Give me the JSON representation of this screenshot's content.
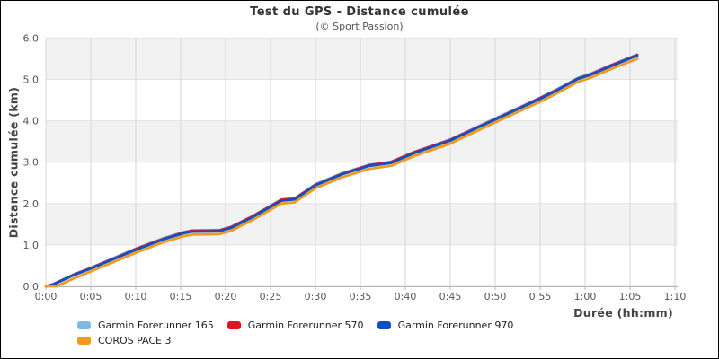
{
  "header": {
    "title": "Test du GPS - Distance cumulée",
    "subtitle": "(© Sport Passion)"
  },
  "chart_data": {
    "type": "line",
    "title": "Test du GPS - Distance cumulée",
    "subtitle": "(© Sport Passion)",
    "xlabel": "Durée (hh:mm)",
    "ylabel": "Distance cumulée (km)",
    "xlim_minutes": [
      0,
      70
    ],
    "ylim": [
      0,
      6
    ],
    "x_ticks": [
      "0:00",
      "0:05",
      "0:10",
      "0:15",
      "0:20",
      "0:25",
      "0:30",
      "0:35",
      "0:40",
      "0:45",
      "0:50",
      "0:55",
      "1:00",
      "1:05",
      "1:10"
    ],
    "x_tick_minutes": [
      0,
      5,
      10,
      15,
      20,
      25,
      30,
      35,
      40,
      45,
      50,
      55,
      60,
      65,
      70
    ],
    "y_ticks": [
      "0.0",
      "1.0",
      "2.0",
      "3.0",
      "4.0",
      "5.0",
      "6.0"
    ],
    "grid": {
      "band_color_odd": "#f2f2f2",
      "band_color_even": "#ffffff",
      "vline_color": "#d6d6d6",
      "hline_color": "#e3e3e3",
      "axis_color": "#b5b5b5"
    },
    "legend_position": "bottom-left",
    "series": [
      {
        "name": "Garmin Forerunner 165",
        "color": "#7db9e8",
        "points": [
          [
            0,
            0
          ],
          [
            0.8,
            0.05
          ],
          [
            3,
            0.28
          ],
          [
            5,
            0.45
          ],
          [
            8,
            0.73
          ],
          [
            10,
            0.91
          ],
          [
            13,
            1.16
          ],
          [
            15.3,
            1.31
          ],
          [
            16.2,
            1.35
          ],
          [
            19.3,
            1.36
          ],
          [
            20.6,
            1.44
          ],
          [
            23,
            1.7
          ],
          [
            26.2,
            2.1
          ],
          [
            27.7,
            2.13
          ],
          [
            30,
            2.47
          ],
          [
            33,
            2.74
          ],
          [
            36,
            2.94
          ],
          [
            38.4,
            3.01
          ],
          [
            41,
            3.25
          ],
          [
            45,
            3.55
          ],
          [
            48,
            3.86
          ],
          [
            50,
            4.06
          ],
          [
            53,
            4.36
          ],
          [
            55,
            4.56
          ],
          [
            57,
            4.78
          ],
          [
            59.2,
            5.04
          ],
          [
            60.6,
            5.14
          ],
          [
            63,
            5.36
          ],
          [
            65.8,
            5.6
          ]
        ]
      },
      {
        "name": "Garmin Forerunner 570",
        "color": "#e8111e",
        "points": [
          [
            0,
            0
          ],
          [
            0.8,
            0.05
          ],
          [
            3,
            0.27
          ],
          [
            5,
            0.44
          ],
          [
            8,
            0.71
          ],
          [
            10,
            0.9
          ],
          [
            13,
            1.14
          ],
          [
            15.3,
            1.3
          ],
          [
            16.2,
            1.34
          ],
          [
            19.3,
            1.35
          ],
          [
            20.6,
            1.43
          ],
          [
            23,
            1.69
          ],
          [
            26.2,
            2.09
          ],
          [
            27.7,
            2.12
          ],
          [
            30,
            2.45
          ],
          [
            33,
            2.72
          ],
          [
            36,
            2.93
          ],
          [
            38.4,
            3.0
          ],
          [
            41,
            3.24
          ],
          [
            45,
            3.54
          ],
          [
            48,
            3.84
          ],
          [
            50,
            4.04
          ],
          [
            53,
            4.34
          ],
          [
            55,
            4.55
          ],
          [
            57,
            4.76
          ],
          [
            59.2,
            5.02
          ],
          [
            60.6,
            5.12
          ],
          [
            63,
            5.35
          ],
          [
            65.8,
            5.59
          ]
        ]
      },
      {
        "name": "Garmin Forerunner 970",
        "color": "#1450c0",
        "points": [
          [
            0,
            0
          ],
          [
            0.8,
            0.04
          ],
          [
            3,
            0.26
          ],
          [
            5,
            0.43
          ],
          [
            8,
            0.7
          ],
          [
            10,
            0.88
          ],
          [
            13,
            1.13
          ],
          [
            15.3,
            1.28
          ],
          [
            16.2,
            1.32
          ],
          [
            19.3,
            1.33
          ],
          [
            20.6,
            1.41
          ],
          [
            23,
            1.67
          ],
          [
            26.2,
            2.07
          ],
          [
            27.7,
            2.1
          ],
          [
            30,
            2.44
          ],
          [
            33,
            2.71
          ],
          [
            36,
            2.91
          ],
          [
            38.4,
            2.98
          ],
          [
            41,
            3.22
          ],
          [
            45,
            3.52
          ],
          [
            48,
            3.83
          ],
          [
            50,
            4.03
          ],
          [
            53,
            4.33
          ],
          [
            55,
            4.53
          ],
          [
            57,
            4.75
          ],
          [
            59.2,
            5.01
          ],
          [
            60.6,
            5.11
          ],
          [
            63,
            5.33
          ],
          [
            65.8,
            5.58
          ]
        ]
      },
      {
        "name": "COROS PACE 3",
        "color": "#f09a1e",
        "points": [
          [
            0,
            0
          ],
          [
            1.2,
            0.0
          ],
          [
            3,
            0.18
          ],
          [
            5,
            0.36
          ],
          [
            8,
            0.63
          ],
          [
            10,
            0.81
          ],
          [
            13,
            1.06
          ],
          [
            15.3,
            1.21
          ],
          [
            16.2,
            1.25
          ],
          [
            19.3,
            1.26
          ],
          [
            20.6,
            1.34
          ],
          [
            23,
            1.6
          ],
          [
            26.2,
            2.0
          ],
          [
            27.7,
            2.03
          ],
          [
            30,
            2.37
          ],
          [
            33,
            2.64
          ],
          [
            36,
            2.84
          ],
          [
            38.4,
            2.91
          ],
          [
            41,
            3.15
          ],
          [
            45,
            3.45
          ],
          [
            48,
            3.76
          ],
          [
            50,
            3.96
          ],
          [
            53,
            4.26
          ],
          [
            55,
            4.46
          ],
          [
            57,
            4.68
          ],
          [
            59.2,
            4.94
          ],
          [
            60.6,
            5.04
          ],
          [
            63,
            5.26
          ],
          [
            65.8,
            5.5
          ]
        ]
      }
    ]
  }
}
